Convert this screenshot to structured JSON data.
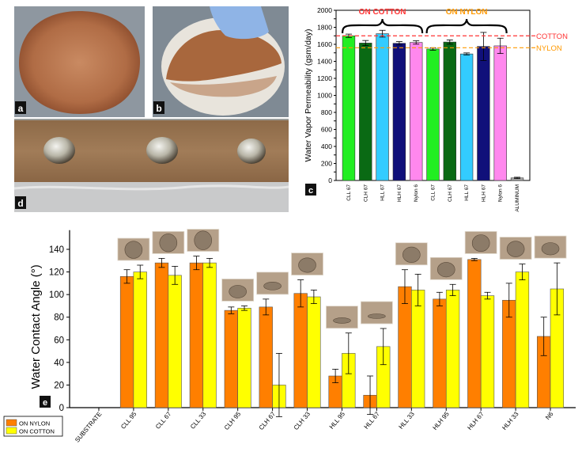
{
  "panel_labels": {
    "a": "a",
    "b": "b",
    "c": "c",
    "d": "d",
    "e": "e"
  },
  "colors": {
    "orange": "#ff7f00",
    "yellow": "#ffff00",
    "cll": "#22ee22",
    "clh": "#0a6a14",
    "hll": "#33ccff",
    "hlh": "#10107a",
    "nylon6": "#ff88ee",
    "aluminum": "#aaaaaa",
    "cotton_ref": "#ff3333",
    "nylon_ref": "#ff9900"
  },
  "chart_data": [
    {
      "id": "c",
      "type": "bar",
      "ylabel": "Water Vapor Permeability (gsm/day)",
      "ylim": [
        0,
        2000
      ],
      "yticks": [
        0,
        100,
        200,
        300,
        400,
        500,
        600,
        700,
        800,
        900,
        1000,
        1100,
        1200,
        1300,
        1400,
        1500,
        1600,
        1700,
        1800,
        1900,
        2000
      ],
      "categories": [
        "CLL 67",
        "CLH 67",
        "HLL 67",
        "HLH 67",
        "Nylon 6",
        "CLL 67",
        "CLH 67",
        "HLL 67",
        "HLH 67",
        "Nylon 6",
        "ALUMINUM"
      ],
      "values": [
        1700,
        1615,
        1725,
        1612,
        1622,
        1545,
        1627,
        1487,
        1575,
        1582,
        30
      ],
      "errors": [
        20,
        30,
        40,
        20,
        20,
        15,
        25,
        12,
        165,
        90,
        8
      ],
      "bar_colors": [
        "cll",
        "clh",
        "hll",
        "hlh",
        "nylon6",
        "cll",
        "clh",
        "hll",
        "hlh",
        "nylon6",
        "aluminum"
      ],
      "reference_lines": [
        {
          "label": "COTTON",
          "value": 1700,
          "color": "cotton_ref"
        },
        {
          "label": "NYLON",
          "value": 1560,
          "color": "nylon_ref"
        }
      ],
      "group_labels": [
        {
          "label": "ON COTTON",
          "color": "cotton_ref"
        },
        {
          "label": "ON NYLON",
          "color": "nylon_ref"
        }
      ]
    },
    {
      "id": "e",
      "type": "bar",
      "ylabel": "Water Contact Angle (°)",
      "ylim": [
        0,
        150
      ],
      "yticks": [
        0,
        20,
        40,
        60,
        80,
        100,
        120,
        140
      ],
      "categories": [
        "SUBSTRATE",
        "CLL 95",
        "CLL 67",
        "CLL 33",
        "CLH 95",
        "CLH 67",
        "CLH 33",
        "HLL 95",
        "HLL 67",
        "HLL 33",
        "HLH 95",
        "HLH 67",
        "HLH 33",
        "N6"
      ],
      "series": [
        {
          "name": "ON NYLON",
          "values": [
            null,
            116,
            128,
            128,
            86,
            89,
            101,
            28,
            11,
            107,
            96,
            131,
            95,
            63
          ],
          "errors": [
            null,
            6,
            4,
            6,
            3,
            7,
            12,
            6,
            17,
            15,
            6,
            1,
            15,
            17
          ]
        },
        {
          "name": "ON COTTON",
          "values": [
            null,
            120,
            117,
            128,
            88,
            20,
            98,
            48,
            54,
            104,
            104,
            99,
            120,
            105
          ],
          "errors": [
            null,
            6,
            8,
            4,
            2,
            28,
            6,
            18,
            16,
            14,
            5,
            3,
            7,
            23
          ]
        }
      ],
      "legend_position": "bottom-left"
    }
  ]
}
